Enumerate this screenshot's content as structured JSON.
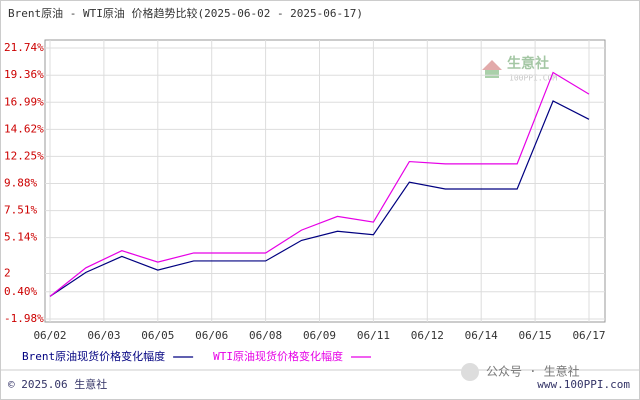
{
  "chart_data": {
    "type": "line",
    "title": "Brent原油 - WTI原油 价格趋势比较(2025-06-02 - 2025-06-17)",
    "x": [
      2,
      3,
      4,
      5,
      6,
      7,
      8,
      9,
      10,
      11,
      12,
      13,
      14,
      15,
      16,
      17
    ],
    "xlim": [
      2,
      17
    ],
    "xticks": [
      {
        "value": 2,
        "label": "06/02"
      },
      {
        "value": 3.5,
        "label": "06/03"
      },
      {
        "value": 5,
        "label": "06/05"
      },
      {
        "value": 6.5,
        "label": "06/06"
      },
      {
        "value": 8,
        "label": "06/08"
      },
      {
        "value": 9.5,
        "label": "06/09"
      },
      {
        "value": 11,
        "label": "06/11"
      },
      {
        "value": 12.5,
        "label": "06/12"
      },
      {
        "value": 14,
        "label": "06/14"
      },
      {
        "value": 15.5,
        "label": "06/15"
      },
      {
        "value": 17,
        "label": "06/17"
      }
    ],
    "ylim": [
      -1.98,
      21.74
    ],
    "yticks": [
      {
        "value": 21.74,
        "label": "21.74%"
      },
      {
        "value": 19.36,
        "label": "19.36%"
      },
      {
        "value": 16.99,
        "label": "16.99%"
      },
      {
        "value": 14.62,
        "label": "14.62%"
      },
      {
        "value": 12.25,
        "label": "12.25%"
      },
      {
        "value": 9.88,
        "label": "9.88%"
      },
      {
        "value": 7.51,
        "label": "7.51%"
      },
      {
        "value": 5.14,
        "label": "5.14%"
      },
      2,
      {
        "value": 0.4,
        "label": "0.40%"
      },
      {
        "value": -1.98,
        "label": "-1.98%"
      }
    ],
    "grid": true,
    "legend": "bottom",
    "series": [
      {
        "name": "Brent原油现货价格变化幅度",
        "color": "#000080",
        "values": [
          0,
          2.1,
          3.5,
          2.3,
          3.1,
          3.1,
          3.1,
          4.9,
          5.7,
          5.4,
          10.0,
          9.4,
          9.4,
          9.4,
          17.1,
          15.5
        ]
      },
      {
        "name": "WTI原油现货价格变化幅度",
        "color": "#e600e6",
        "values": [
          0,
          2.5,
          4.0,
          3.0,
          3.8,
          3.8,
          3.8,
          5.8,
          7.0,
          6.5,
          11.8,
          11.6,
          11.6,
          11.6,
          19.6,
          17.7
        ]
      }
    ]
  },
  "footer": {
    "copyright": "© 2025.06 生意社",
    "site": "www.100PPI.com",
    "watermark": "公众号 · 生意社",
    "logo": "生意社",
    "logo_sub": "100PPI.COM"
  }
}
